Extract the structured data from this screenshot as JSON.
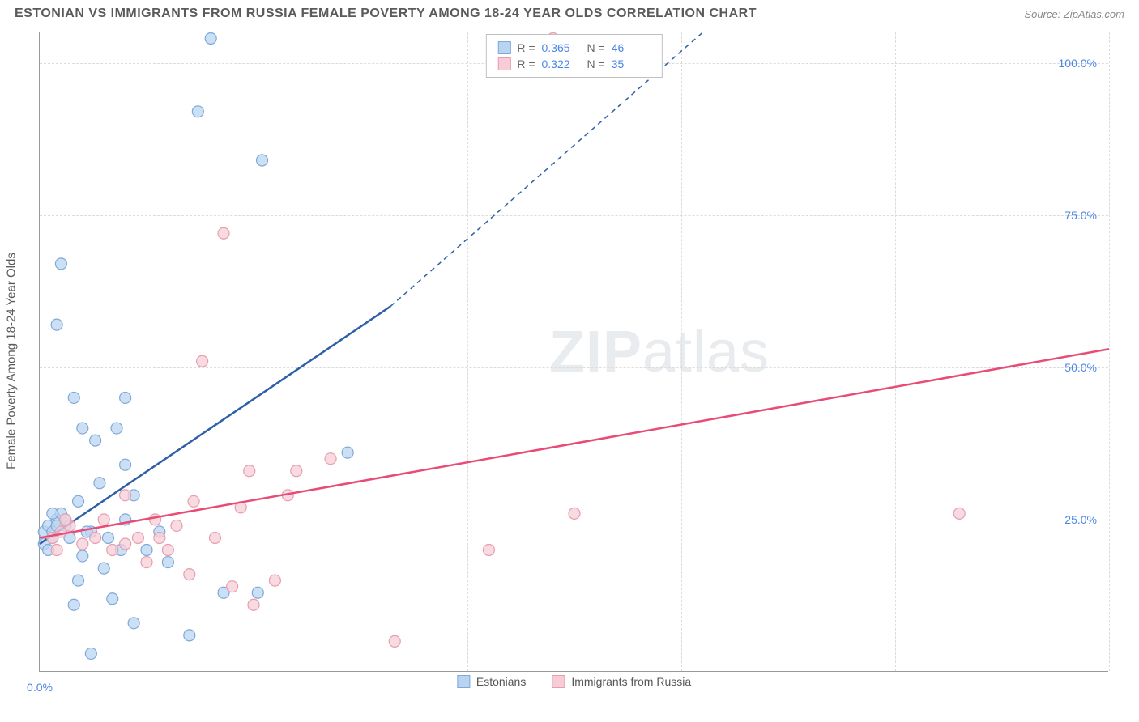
{
  "header": {
    "title": "ESTONIAN VS IMMIGRANTS FROM RUSSIA FEMALE POVERTY AMONG 18-24 YEAR OLDS CORRELATION CHART",
    "source_label": "Source:",
    "source_value": "ZipAtlas.com"
  },
  "chart": {
    "type": "scatter",
    "y_axis_title": "Female Poverty Among 18-24 Year Olds",
    "watermark": "ZIPatlas",
    "xlim": [
      0,
      25
    ],
    "ylim": [
      0,
      105
    ],
    "xtick": {
      "pos": 0,
      "label": "0.0%"
    },
    "xticks_minor": [
      5,
      10,
      15,
      20,
      25
    ],
    "yticks": [
      {
        "pos": 25,
        "label": "25.0%"
      },
      {
        "pos": 50,
        "label": "50.0%"
      },
      {
        "pos": 75,
        "label": "75.0%"
      },
      {
        "pos": 100,
        "label": "100.0%"
      }
    ],
    "grid_color": "#dcdcdc",
    "background_color": "#ffffff",
    "series": [
      {
        "name": "Estonians",
        "fill": "#b9d4f1",
        "stroke": "#7fa9d8",
        "line_color": "#2f5fa8",
        "r_value": "0.365",
        "n_value": "46",
        "trend": {
          "x1": 0,
          "y1": 21,
          "x2": 8.2,
          "y2": 60,
          "extend_x": 15.5,
          "extend_y": 105
        },
        "points": [
          [
            0.1,
            23
          ],
          [
            0.2,
            24
          ],
          [
            0.3,
            22
          ],
          [
            0.4,
            25
          ],
          [
            0.1,
            21
          ],
          [
            0.5,
            26
          ],
          [
            0.3,
            23
          ],
          [
            0.6,
            24
          ],
          [
            0.2,
            20
          ],
          [
            0.8,
            45
          ],
          [
            0.4,
            57
          ],
          [
            1.0,
            40
          ],
          [
            0.5,
            67
          ],
          [
            4.0,
            104
          ],
          [
            3.7,
            92
          ],
          [
            0.7,
            22
          ],
          [
            1.2,
            23
          ],
          [
            1.0,
            19
          ],
          [
            1.3,
            38
          ],
          [
            1.8,
            40
          ],
          [
            2.0,
            25
          ],
          [
            2.2,
            29
          ],
          [
            2.5,
            20
          ],
          [
            1.5,
            17
          ],
          [
            2.0,
            34
          ],
          [
            1.4,
            31
          ],
          [
            0.9,
            15
          ],
          [
            2.8,
            23
          ],
          [
            1.7,
            12
          ],
          [
            0.8,
            11
          ],
          [
            2.2,
            8
          ],
          [
            1.2,
            3
          ],
          [
            3.5,
            6
          ],
          [
            4.3,
            13
          ],
          [
            5.1,
            13
          ],
          [
            5.2,
            84
          ],
          [
            7.2,
            36
          ],
          [
            3.0,
            18
          ],
          [
            2.0,
            45
          ],
          [
            1.6,
            22
          ],
          [
            0.6,
            25
          ],
          [
            0.3,
            26
          ],
          [
            0.9,
            28
          ],
          [
            1.1,
            23
          ],
          [
            1.9,
            20
          ],
          [
            0.4,
            24
          ]
        ]
      },
      {
        "name": "Immigrants from Russia",
        "fill": "#f6cdd7",
        "stroke": "#e99db0",
        "line_color": "#e94b77",
        "r_value": "0.322",
        "n_value": "35",
        "trend": {
          "x1": 0,
          "y1": 22,
          "x2": 25,
          "y2": 53
        },
        "points": [
          [
            0.3,
            22
          ],
          [
            0.5,
            23
          ],
          [
            0.7,
            24
          ],
          [
            0.4,
            20
          ],
          [
            0.6,
            25
          ],
          [
            1.0,
            21
          ],
          [
            1.3,
            22
          ],
          [
            1.5,
            25
          ],
          [
            1.7,
            20
          ],
          [
            2.0,
            21
          ],
          [
            2.3,
            22
          ],
          [
            2.5,
            18
          ],
          [
            2.7,
            25
          ],
          [
            3.0,
            20
          ],
          [
            3.2,
            24
          ],
          [
            3.5,
            16
          ],
          [
            3.6,
            28
          ],
          [
            3.8,
            51
          ],
          [
            4.1,
            22
          ],
          [
            4.3,
            72
          ],
          [
            4.5,
            14
          ],
          [
            4.7,
            27
          ],
          [
            4.9,
            33
          ],
          [
            5.0,
            11
          ],
          [
            5.5,
            15
          ],
          [
            5.8,
            29
          ],
          [
            6.0,
            33
          ],
          [
            6.8,
            35
          ],
          [
            8.3,
            5
          ],
          [
            10.5,
            20
          ],
          [
            12.0,
            104
          ],
          [
            12.5,
            26
          ],
          [
            21.5,
            26
          ],
          [
            2.0,
            29
          ],
          [
            2.8,
            22
          ]
        ]
      }
    ],
    "marker_radius": 7,
    "marker_stroke_width": 1.2,
    "trend_line_width": 2.5
  }
}
